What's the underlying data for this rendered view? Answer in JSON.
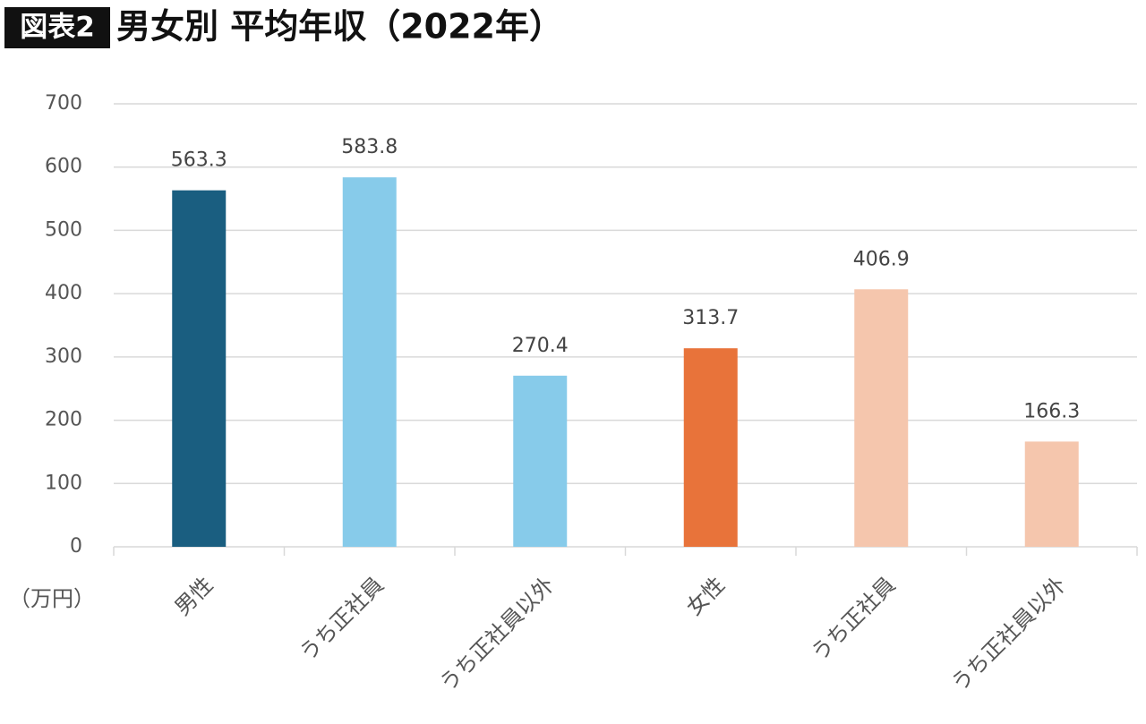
{
  "chart_data": {
    "type": "bar",
    "badge": "図表2",
    "title": "男女別 平均年収（2022年）",
    "unit_label": "（万円）",
    "categories": [
      "男性",
      "うち正社員",
      "うち正社員以外",
      "女性",
      "うち正社員",
      "うち正社員以外"
    ],
    "values": [
      563.3,
      583.8,
      270.4,
      313.7,
      406.9,
      166.3
    ],
    "colors": [
      "#1a5e80",
      "#87cbea",
      "#87cbea",
      "#e8733a",
      "#f5c6ad",
      "#f5c6ad"
    ],
    "ylim": [
      0,
      700
    ],
    "yticks": [
      0,
      100,
      200,
      300,
      400,
      500,
      600,
      700
    ],
    "grid": true
  }
}
